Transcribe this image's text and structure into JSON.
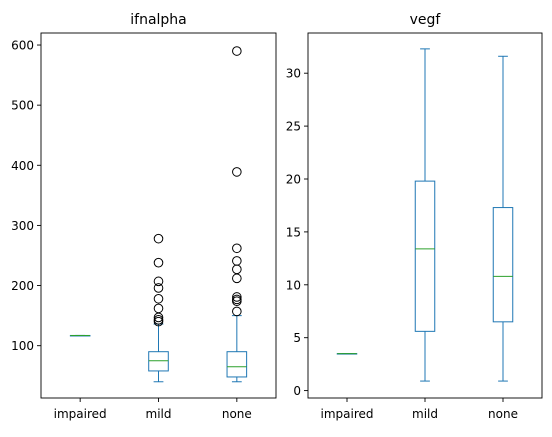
{
  "colors": {
    "box": "#1f77b4",
    "median": "#2ca02c",
    "axis": "#000000",
    "flier_edge": "#000000"
  },
  "chart_data": [
    {
      "type": "box",
      "title": "ifnalpha",
      "xlabel": "",
      "ylabel": "",
      "categories": [
        "impaired",
        "mild",
        "none"
      ],
      "ylim": [
        13,
        620
      ],
      "yticks": [
        100,
        200,
        300,
        400,
        500,
        600
      ],
      "ytick_labels": [
        "100",
        "200",
        "300",
        "400",
        "500",
        "600"
      ],
      "grid": false,
      "boxes": [
        {
          "label": "impaired",
          "whisker_low": 117,
          "q1": 117,
          "median": 117,
          "q3": 117,
          "whisker_high": 117,
          "fliers": []
        },
        {
          "label": "mild",
          "whisker_low": 40,
          "q1": 58,
          "median": 75,
          "q3": 90,
          "whisker_high": 136,
          "fliers": [
            140,
            143,
            147,
            162,
            178,
            196,
            207,
            238,
            278
          ]
        },
        {
          "label": "none",
          "whisker_low": 40,
          "q1": 48,
          "median": 65,
          "q3": 90,
          "whisker_high": 150,
          "fliers": [
            157,
            174,
            177,
            181,
            212,
            227,
            241,
            262,
            389,
            590
          ]
        }
      ]
    },
    {
      "type": "box",
      "title": "vegf",
      "xlabel": "",
      "ylabel": "",
      "categories": [
        "impaired",
        "mild",
        "none"
      ],
      "ylim": [
        -0.7,
        33.8
      ],
      "yticks": [
        0,
        5,
        10,
        15,
        20,
        25,
        30
      ],
      "ytick_labels": [
        "0",
        "5",
        "10",
        "15",
        "20",
        "25",
        "30"
      ],
      "grid": false,
      "boxes": [
        {
          "label": "impaired",
          "whisker_low": 3.5,
          "q1": 3.5,
          "median": 3.5,
          "q3": 3.5,
          "whisker_high": 3.5,
          "fliers": []
        },
        {
          "label": "mild",
          "whisker_low": 0.9,
          "q1": 5.6,
          "median": 13.4,
          "q3": 19.8,
          "whisker_high": 32.3,
          "fliers": []
        },
        {
          "label": "none",
          "whisker_low": 0.9,
          "q1": 6.5,
          "median": 10.8,
          "q3": 17.3,
          "whisker_high": 31.6,
          "fliers": []
        }
      ]
    }
  ]
}
